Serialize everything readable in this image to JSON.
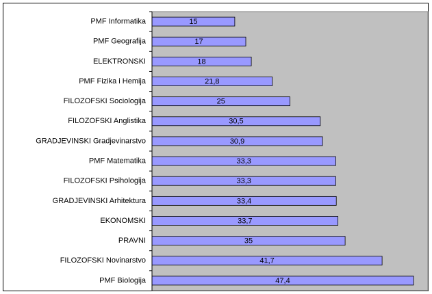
{
  "chart_data": {
    "type": "bar",
    "orientation": "horizontal",
    "categories": [
      "PMF Informatika",
      "PMF Geografija",
      "ELEKTRONSKI",
      "PMF Fizika i Hemija",
      "FILOZOFSKI Sociologija",
      "FILOZOFSKI Anglistika",
      "GRADJEVINSKI Gradjevinarstvo",
      "PMF Matematika",
      "FILOZOFSKI Psihologija",
      "GRADJEVINSKI Arhitektura",
      "EKONOMSKI",
      "PRAVNI",
      "FILOZOFSKI Novinarstvo",
      "PMF Biologija"
    ],
    "values": [
      15,
      17,
      18,
      21.8,
      25,
      30.5,
      30.9,
      33.3,
      33.3,
      33.4,
      33.7,
      35,
      41.7,
      47.4
    ],
    "value_labels": [
      "15",
      "17",
      "18",
      "21,8",
      "25",
      "30,5",
      "30,9",
      "33,3",
      "33,3",
      "33,4",
      "33,7",
      "35",
      "41,7",
      "47,4"
    ],
    "color": "#9999ff",
    "plot_background": "#c0c0c0",
    "xlim": [
      0,
      50
    ]
  }
}
